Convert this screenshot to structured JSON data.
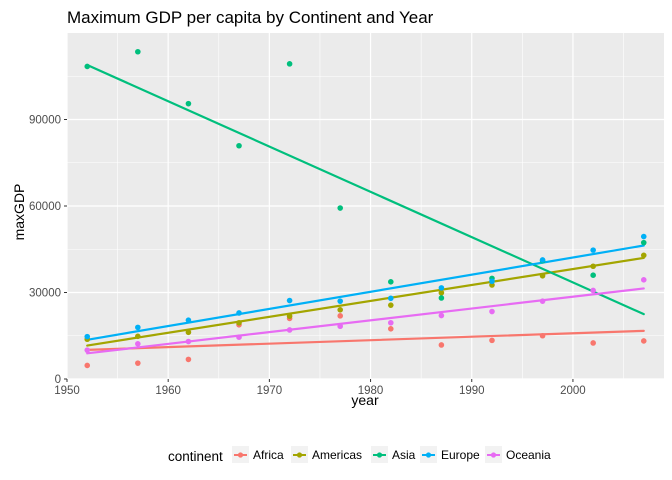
{
  "chart_data": {
    "type": "scatter",
    "title": "Maximum GDP per capita by Continent and Year",
    "xlabel": "year",
    "ylabel": "maxGDP",
    "xlim": [
      1950,
      2009
    ],
    "ylim": [
      0,
      120000
    ],
    "x_ticks": [
      1950,
      1960,
      1970,
      1980,
      1990,
      2000
    ],
    "x_tick_labels": [
      "1950",
      "1960",
      "1970",
      "1980",
      "1990",
      "2000"
    ],
    "y_ticks": [
      0,
      30000,
      60000,
      90000
    ],
    "y_tick_labels": [
      "0",
      "30000",
      "60000",
      "90000"
    ],
    "grid": true,
    "background": "#ebebeb",
    "legend": {
      "title": "continent",
      "position": "bottom"
    },
    "x": [
      1952,
      1957,
      1962,
      1967,
      1972,
      1977,
      1982,
      1987,
      1992,
      1997,
      2002,
      2007
    ],
    "series": [
      {
        "name": "Africa",
        "color": "#f8766d",
        "values": [
          4700,
          5500,
          6800,
          18800,
          21000,
          21900,
          17400,
          11800,
          13400,
          15000,
          12500,
          13200
        ],
        "trend": [
          10100,
          16700
        ]
      },
      {
        "name": "Americas",
        "color": "#a3a500",
        "values": [
          13800,
          14800,
          16200,
          19500,
          21800,
          24000,
          25600,
          29900,
          32600,
          35800,
          39100,
          42900
        ],
        "trend": [
          11600,
          42000
        ]
      },
      {
        "name": "Asia",
        "color": "#00bf7d",
        "values": [
          108400,
          113500,
          95500,
          80900,
          109300,
          59300,
          33700,
          28100,
          34900,
          41000,
          36000,
          47300
        ],
        "trend": [
          108900,
          22500
        ]
      },
      {
        "name": "Europe",
        "color": "#00b0f6",
        "values": [
          14700,
          17900,
          20400,
          22900,
          27200,
          27000,
          28000,
          31600,
          33900,
          41300,
          44700,
          49400
        ],
        "trend": [
          13600,
          46300
        ]
      },
      {
        "name": "Oceania",
        "color": "#e76bf3",
        "values": [
          10000,
          12200,
          13000,
          14500,
          17000,
          18300,
          19500,
          22000,
          23400,
          27000,
          30700,
          34400
        ],
        "trend": [
          8900,
          31400
        ]
      }
    ]
  }
}
